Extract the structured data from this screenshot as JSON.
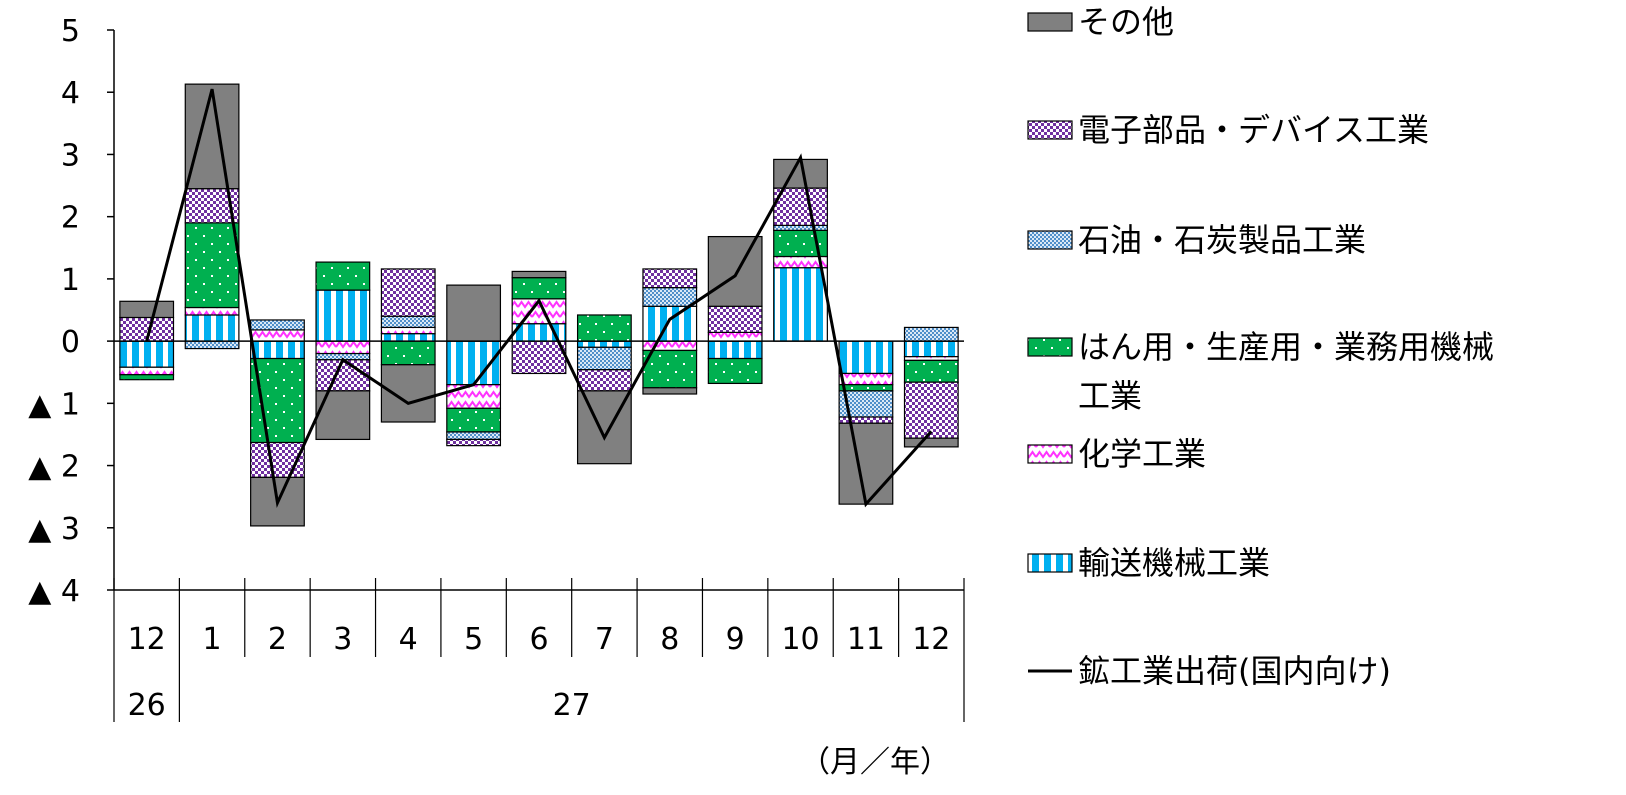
{
  "chart_data": {
    "type": "bar",
    "stacked": true,
    "categories": [
      "12",
      "1",
      "2",
      "3",
      "4",
      "5",
      "6",
      "7",
      "8",
      "9",
      "10",
      "11",
      "12"
    ],
    "year_labels": [
      {
        "label": "26",
        "from": 0,
        "to": 0
      },
      {
        "label": "27",
        "from": 1,
        "to": 12
      }
    ],
    "unit_label": "（月／年）",
    "ylim": [
      -4,
      5
    ],
    "y_ticks": [
      {
        "value": 5,
        "label": "5"
      },
      {
        "value": 4,
        "label": "4"
      },
      {
        "value": 3,
        "label": "3"
      },
      {
        "value": 2,
        "label": "2"
      },
      {
        "value": 1,
        "label": "1"
      },
      {
        "value": 0,
        "label": "0"
      },
      {
        "value": -1,
        "label": "▲ 1"
      },
      {
        "value": -2,
        "label": "▲ 2"
      },
      {
        "value": -3,
        "label": "▲ 3"
      },
      {
        "value": -4,
        "label": "▲ 4"
      }
    ],
    "series": [
      {
        "name": "輸送機械工業",
        "key": "transport",
        "color": "#00b0f0",
        "values": [
          -0.42,
          0.42,
          -0.28,
          0.82,
          0.12,
          -0.7,
          0.28,
          -0.1,
          0.56,
          -0.28,
          1.18,
          -0.52,
          -0.25
        ]
      },
      {
        "name": "化学工業",
        "key": "chemical",
        "color": "#ff66ff",
        "values": [
          -0.12,
          0.12,
          0.18,
          -0.2,
          0.1,
          -0.38,
          0.4,
          0.0,
          -0.15,
          0.14,
          0.18,
          -0.18,
          -0.06
        ]
      },
      {
        "name": "はん用・生産用・業務用機械工業",
        "key": "machinery",
        "color": "#00b050",
        "values": [
          -0.08,
          1.36,
          -1.35,
          0.45,
          -0.38,
          -0.38,
          0.34,
          0.42,
          -0.6,
          -0.4,
          0.42,
          -0.1,
          -0.35
        ]
      },
      {
        "name": "石油・石炭製品工業",
        "key": "petroleum",
        "color": "#8db4e2",
        "values": [
          0.0,
          -0.12,
          0.16,
          -0.1,
          0.18,
          -0.12,
          0.0,
          -0.36,
          0.3,
          0.0,
          0.08,
          -0.42,
          0.22
        ]
      },
      {
        "name": "電子部品・デバイス工業",
        "key": "electronic",
        "color": "#7030a0",
        "values": [
          0.38,
          0.55,
          -0.56,
          -0.5,
          0.76,
          -0.1,
          -0.52,
          -0.34,
          0.3,
          0.42,
          0.6,
          -0.1,
          -0.9
        ]
      },
      {
        "name": "その他",
        "key": "other",
        "color": "#808080",
        "values": [
          0.26,
          1.68,
          -0.78,
          -0.78,
          -0.92,
          0.9,
          0.1,
          -1.17,
          -0.1,
          1.12,
          0.46,
          -1.3,
          -0.14
        ]
      }
    ],
    "line": {
      "name": "鉱工業出荷(国内向け)",
      "color": "#000000",
      "values": [
        0.0,
        4.05,
        -2.6,
        -0.3,
        -1.0,
        -0.7,
        0.65,
        -1.55,
        0.35,
        1.05,
        2.95,
        -2.62,
        -1.45
      ]
    },
    "legend": [
      {
        "label": "その他",
        "key": "other"
      },
      {
        "label": "電子部品・デバイス工業",
        "key": "electronic"
      },
      {
        "label": "石油・石炭製品工業",
        "key": "petroleum"
      },
      {
        "label": "はん用・生産用・業務用機械",
        "label2": "工業",
        "key": "machinery"
      },
      {
        "label": "化学工業",
        "key": "chemical"
      },
      {
        "label": "輸送機械工業",
        "key": "transport"
      },
      {
        "label": "鉱工業出荷(国内向け)",
        "key": "line"
      }
    ],
    "legend_position": "right",
    "grid": false
  }
}
